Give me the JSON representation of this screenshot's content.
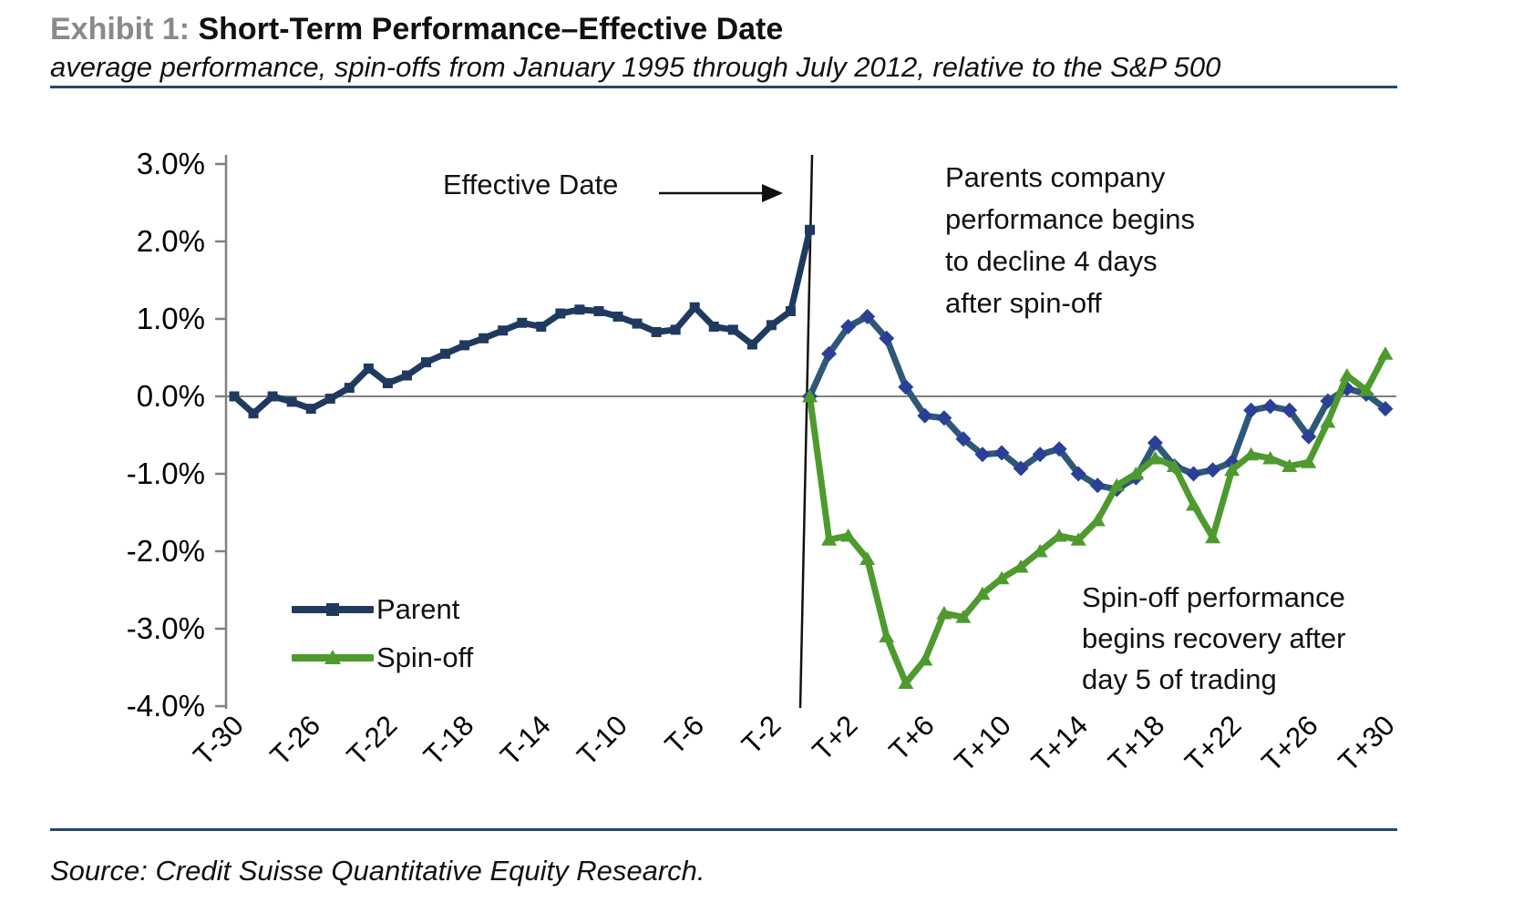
{
  "header": {
    "exhibit_label": "Exhibit 1:",
    "title": "Short-Term Performance–Effective Date",
    "subtitle": "average performance, spin-offs from January 1995 through July 2012, relative to the S&P 500"
  },
  "source_line": "Source: Credit Suisse Quantitative Equity Research.",
  "legend": [
    {
      "label": "Parent",
      "marker": "square",
      "color": "#1F3A5E"
    },
    {
      "label": "Spin-off",
      "marker": "triangle",
      "color": "#4E9A2E"
    }
  ],
  "annotations": {
    "effective_date_label": "Effective Date",
    "parent_note_lines": [
      "Parents company",
      "performance begins",
      "to decline 4 days",
      "after spin-off"
    ],
    "spinoff_note_lines": [
      "Spin-off performance",
      "begins recovery after",
      "day 5 of trading"
    ]
  },
  "colors": {
    "parent_line": "#1F3A5E",
    "parent_post_line": "#2E5878",
    "parent_post_marker": "#2A3F97",
    "spinoff_line": "#4E9A2E",
    "axis_gray": "#808080",
    "effective_line": "#111111",
    "accent_rule": "#24476e",
    "exhibit_gray": "#8a8a8a"
  },
  "chart_data": {
    "type": "line",
    "title": "Short-Term Performance–Effective Date",
    "subtitle": "average performance, spin-offs from January 1995 through July 2012, relative to the S&P 500",
    "ylabel": "",
    "xlabel": "",
    "ylim": [
      -4.0,
      3.0
    ],
    "xlim_days": [
      -30,
      30
    ],
    "grid": "zero-line-only",
    "legend_position": "inside lower-left",
    "effective_date_day": 0,
    "y_tick_labels": [
      "3.0%",
      "2.0%",
      "1.0%",
      "0.0%",
      "-1.0%",
      "-2.0%",
      "-3.0%",
      "-4.0%"
    ],
    "y_tick_values": [
      3,
      2,
      1,
      0,
      -1,
      -2,
      -3,
      -4
    ],
    "x_tick_labels": [
      "T-30",
      "T-26",
      "T-22",
      "T-18",
      "T-14",
      "T-10",
      "T-6",
      "T-2",
      "T+2",
      "T+6",
      "T+10",
      "T+14",
      "T+18",
      "T+22",
      "T+26",
      "T+30"
    ],
    "x_tick_days": [
      -30,
      -26,
      -22,
      -18,
      -14,
      -10,
      -6,
      -2,
      2,
      6,
      10,
      14,
      18,
      22,
      26,
      30
    ],
    "series": [
      {
        "name": "Parent (pre-effective date)",
        "marker": "square",
        "line_color": "#1F3A5E",
        "marker_color": "#1F3A5E",
        "days": [
          -30,
          -29,
          -28,
          -27,
          -26,
          -25,
          -24,
          -23,
          -22,
          -21,
          -20,
          -19,
          -18,
          -17,
          -16,
          -15,
          -14,
          -13,
          -12,
          -11,
          -10,
          -9,
          -8,
          -7,
          -6,
          -5,
          -4,
          -3,
          -2,
          -1,
          0
        ],
        "values": [
          0.0,
          -0.22,
          0.0,
          -0.07,
          -0.16,
          -0.03,
          0.11,
          0.36,
          0.17,
          0.27,
          0.44,
          0.55,
          0.66,
          0.75,
          0.85,
          0.95,
          0.9,
          1.07,
          1.12,
          1.1,
          1.03,
          0.94,
          0.83,
          0.86,
          1.15,
          0.9,
          0.86,
          0.67,
          0.92,
          1.1,
          2.15
        ]
      },
      {
        "name": "Parent (post-effective date)",
        "marker": "diamond",
        "line_color": "#2E5878",
        "marker_color": "#2A3F97",
        "days": [
          0,
          1,
          2,
          3,
          4,
          5,
          6,
          7,
          8,
          9,
          10,
          11,
          12,
          13,
          14,
          15,
          16,
          17,
          18,
          19,
          20,
          21,
          22,
          23,
          24,
          25,
          26,
          27,
          28,
          29,
          30
        ],
        "values": [
          0.0,
          0.55,
          0.9,
          1.03,
          0.75,
          0.12,
          -0.25,
          -0.28,
          -0.55,
          -0.75,
          -0.73,
          -0.93,
          -0.75,
          -0.68,
          -1.0,
          -1.15,
          -1.2,
          -1.05,
          -0.6,
          -0.9,
          -1.0,
          -0.95,
          -0.85,
          -0.18,
          -0.13,
          -0.18,
          -0.52,
          -0.06,
          0.1,
          0.03,
          -0.16
        ]
      },
      {
        "name": "Spin-off",
        "marker": "triangle",
        "line_color": "#4E9A2E",
        "marker_color": "#4E9A2E",
        "days": [
          0,
          1,
          2,
          3,
          4,
          5,
          6,
          7,
          8,
          9,
          10,
          11,
          12,
          13,
          14,
          15,
          16,
          17,
          18,
          19,
          20,
          21,
          22,
          23,
          24,
          25,
          26,
          27,
          28,
          29,
          30
        ],
        "values": [
          0.0,
          -1.85,
          -1.8,
          -2.1,
          -3.1,
          -3.7,
          -3.4,
          -2.8,
          -2.85,
          -2.55,
          -2.35,
          -2.2,
          -2.0,
          -1.8,
          -1.85,
          -1.6,
          -1.15,
          -1.0,
          -0.8,
          -0.9,
          -1.4,
          -1.82,
          -0.95,
          -0.75,
          -0.8,
          -0.9,
          -0.85,
          -0.33,
          0.27,
          0.08,
          0.55
        ]
      }
    ]
  }
}
